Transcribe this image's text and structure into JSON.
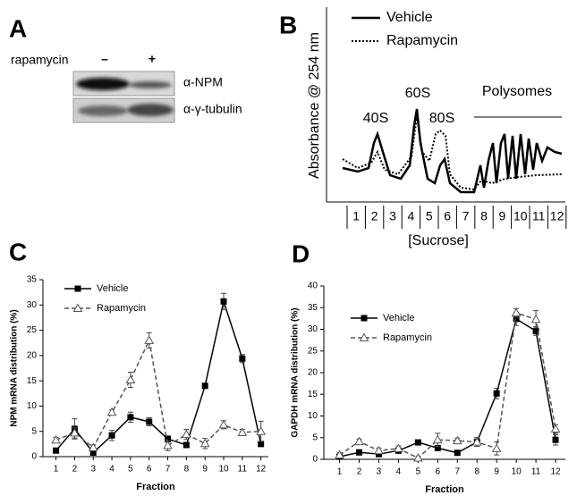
{
  "panel_a": {
    "letter": "A",
    "treatment_label": "rapamycin",
    "lanes": [
      "–",
      "+"
    ],
    "blots": [
      "α-NPM",
      "α-γ-tubulin"
    ]
  },
  "panel_b": {
    "letter": "B",
    "y_label": "Absorbance @ 254 nm",
    "x_label": "[Sucrose]",
    "legend": [
      "Vehicle",
      "Rapamycin"
    ],
    "peaks": [
      "40S",
      "60S",
      "80S"
    ],
    "region": "Polysomes",
    "fractions": [
      1,
      2,
      3,
      4,
      5,
      6,
      7,
      8,
      9,
      10,
      11,
      12
    ]
  },
  "chart_data": [
    {
      "type": "line",
      "title": "C",
      "ylabel": "NPM mRNA distribution (%)",
      "xlabel": "Fraction",
      "x": [
        1,
        2,
        3,
        4,
        5,
        6,
        7,
        8,
        9,
        10,
        11,
        12
      ],
      "xlim": [
        0.3,
        12.4
      ],
      "xticks": [
        1,
        2,
        3,
        4,
        5,
        6,
        7,
        8,
        9,
        10,
        11,
        12
      ],
      "ylim": [
        0,
        35
      ],
      "yticks": [
        0,
        5,
        10,
        15,
        20,
        25,
        30,
        35
      ],
      "legend": "upper left",
      "series": [
        {
          "name": "Vehicle",
          "color": "#000000",
          "marker": "square",
          "dashed": false,
          "values": [
            1.2,
            5.5,
            0.8,
            4.2,
            7.8,
            6.9,
            3.5,
            2.3,
            14.0,
            30.7,
            19.4,
            2.5
          ],
          "errors": [
            0.3,
            2.0,
            0.3,
            1.0,
            1.0,
            0.8,
            0.6,
            0.4,
            0.5,
            1.6,
            0.8,
            0.3
          ]
        },
        {
          "name": "Rapamycin",
          "color": "#555555",
          "marker": "triangle",
          "dashed": true,
          "values": [
            3.3,
            4.7,
            1.8,
            8.8,
            15.2,
            23.0,
            2.2,
            4.4,
            2.6,
            6.3,
            4.8,
            5.0
          ],
          "errors": [
            0.5,
            1.0,
            0.5,
            0.5,
            1.5,
            1.5,
            1.0,
            1.0,
            1.0,
            0.8,
            0.6,
            2.0
          ]
        }
      ]
    },
    {
      "type": "line",
      "title": "D",
      "ylabel": "GAPDH mRNA distribution (%)",
      "xlabel": "Fraction",
      "x": [
        1,
        2,
        3,
        4,
        5,
        6,
        7,
        8,
        9,
        10,
        11,
        12
      ],
      "xlim": [
        0.2,
        12.5
      ],
      "xticks": [
        1,
        2,
        3,
        4,
        5,
        6,
        7,
        8,
        9,
        10,
        11,
        12
      ],
      "ylim": [
        0,
        40
      ],
      "yticks": [
        0,
        5,
        10,
        15,
        20,
        25,
        30,
        35,
        40
      ],
      "legend": "upper left",
      "series": [
        {
          "name": "Vehicle",
          "color": "#000000",
          "marker": "square",
          "dashed": false,
          "values": [
            0.6,
            1.6,
            1.2,
            2.0,
            3.9,
            2.6,
            1.5,
            4.0,
            15.2,
            32.4,
            29.6,
            4.5
          ],
          "errors": [
            0.6,
            0.6,
            0.6,
            0.6,
            0.5,
            0.6,
            0.4,
            1.0,
            1.2,
            1.5,
            1.0,
            1.2
          ]
        },
        {
          "name": "Rapamycin",
          "color": "#555555",
          "marker": "triangle",
          "dashed": true,
          "values": [
            1.0,
            4.1,
            2.0,
            2.5,
            0.3,
            4.5,
            4.3,
            4.0,
            2.5,
            33.8,
            32.3,
            7.0
          ],
          "errors": [
            0.5,
            0.6,
            0.6,
            0.6,
            0.4,
            1.5,
            0.6,
            1.0,
            1.5,
            1.0,
            2.0,
            1.0
          ]
        }
      ]
    }
  ]
}
